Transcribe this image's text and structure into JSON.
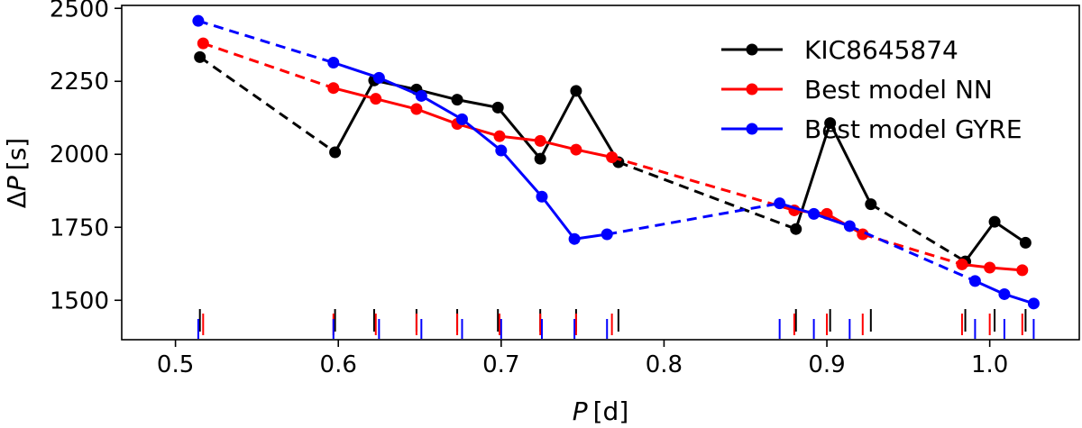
{
  "chart_data": {
    "type": "line",
    "xlabel_var": "P",
    "xlabel_unit": "[d]",
    "ylabel_delta": "Δ",
    "ylabel_var": "P",
    "ylabel_unit": "[s]",
    "xlim": [
      0.467,
      1.055
    ],
    "ylim": [
      1365,
      2510
    ],
    "xticks": [
      0.5,
      0.6,
      0.7,
      0.8,
      0.9,
      1.0
    ],
    "xtick_labels": [
      "0.5",
      "0.6",
      "0.7",
      "0.8",
      "0.9",
      "1.0"
    ],
    "yticks": [
      1500,
      1750,
      2000,
      2250,
      2500
    ],
    "ytick_labels": [
      "1500",
      "1750",
      "2000",
      "2250",
      "2500"
    ],
    "grid": false,
    "legend_position": "top-right",
    "series": [
      {
        "name": "KIC8645874",
        "color": "#000000",
        "x": [
          0.515,
          0.598,
          0.622,
          0.648,
          0.673,
          0.698,
          0.724,
          0.746,
          0.772,
          0.881,
          0.902,
          0.927,
          0.985,
          1.003,
          1.022
        ],
        "y": [
          2333,
          2007,
          2253,
          2222,
          2187,
          2160,
          1985,
          2217,
          1973,
          1744,
          2107,
          1829,
          1633,
          1769,
          1697
        ],
        "dashed_segments": [
          0,
          8,
          11
        ]
      },
      {
        "name": "Best model NN",
        "color": "#ff0000",
        "x": [
          0.517,
          0.597,
          0.623,
          0.648,
          0.673,
          0.699,
          0.724,
          0.746,
          0.768,
          0.88,
          0.9,
          0.922,
          0.983,
          1.0,
          1.02
        ],
        "y": [
          2380,
          2227,
          2190,
          2155,
          2104,
          2062,
          2046,
          2016,
          1990,
          1808,
          1796,
          1726,
          1623,
          1612,
          1603
        ],
        "dashed_segments": [
          0,
          8,
          11
        ]
      },
      {
        "name": "Best model GYRE",
        "color": "#0000ff",
        "x": [
          0.514,
          0.597,
          0.625,
          0.651,
          0.676,
          0.7,
          0.725,
          0.745,
          0.765,
          0.871,
          0.892,
          0.914,
          0.991,
          1.009,
          1.027
        ],
        "y": [
          2457,
          2314,
          2262,
          2200,
          2120,
          2013,
          1855,
          1710,
          1726,
          1832,
          1796,
          1754,
          1566,
          1521,
          1489
        ],
        "dashed_segments": [
          0,
          8,
          11
        ]
      }
    ]
  }
}
